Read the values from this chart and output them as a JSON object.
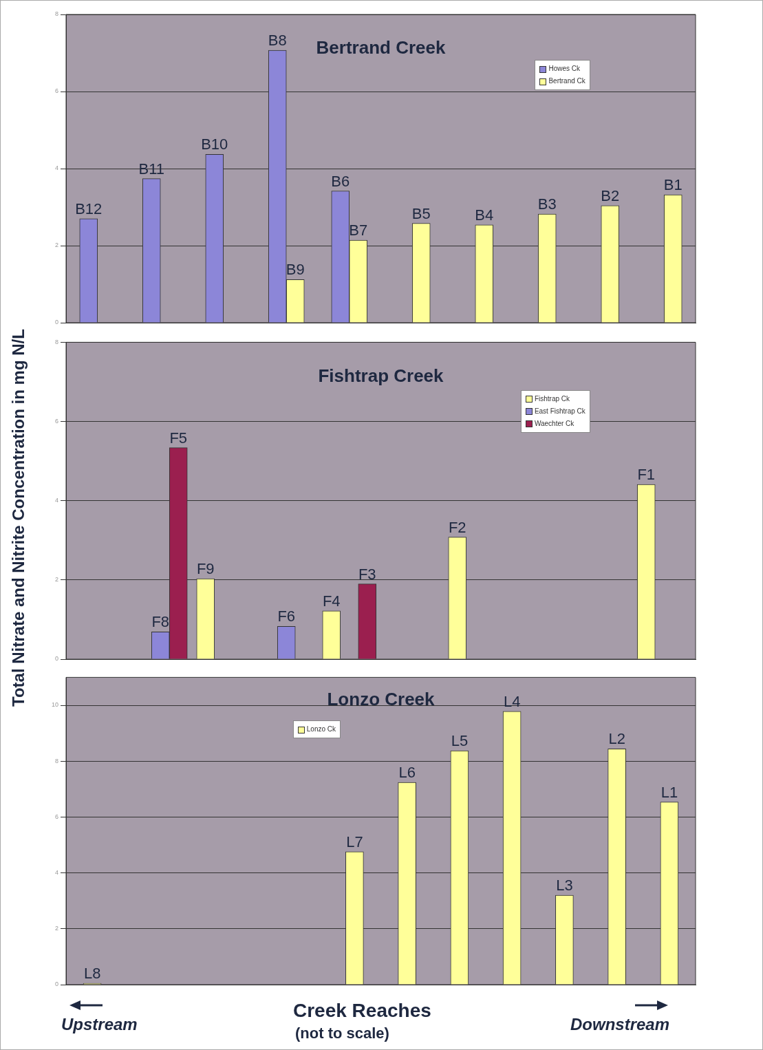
{
  "chart_data": [
    {
      "type": "bar",
      "title": "Bertrand Creek",
      "categories": [
        null,
        null,
        null,
        null,
        null,
        null,
        null,
        null,
        null,
        null
      ],
      "series": [
        {
          "name": "Howes Ck",
          "color": "#8c86d8",
          "values": [
            2.7,
            3.74,
            4.37,
            7.07,
            3.42,
            null,
            null,
            null,
            null,
            null
          ],
          "value_labels": [
            "B12",
            "B11",
            "B10",
            "B8",
            "B6",
            null,
            null,
            null,
            null,
            null
          ]
        },
        {
          "name": "Bertrand Ck",
          "color": "#ffff99",
          "values": [
            null,
            null,
            null,
            1.12,
            2.14,
            2.58,
            2.54,
            2.82,
            3.04,
            3.32
          ],
          "value_labels": [
            null,
            null,
            null,
            "B9",
            "B7",
            "B5",
            "B4",
            "B3",
            "B2",
            "B1"
          ]
        }
      ],
      "ylim": [
        0,
        8
      ],
      "yticks": [
        0,
        2,
        4,
        6,
        8
      ],
      "grid": "y",
      "legend": "top right",
      "tick_labels": "y"
    },
    {
      "type": "bar",
      "title": "Fishtrap Creek",
      "ylabel": "Total Nitrate and Nitrite Concentration in mg N/L",
      "categories": [
        null,
        null,
        null,
        null,
        null,
        null,
        null,
        null,
        null,
        null
      ],
      "series": [
        {
          "name": "Fishtrap Ck",
          "color": "#ffff99",
          "values": [
            null,
            null,
            2.03,
            null,
            1.22,
            null,
            3.08,
            null,
            null,
            4.41
          ],
          "value_labels": [
            null,
            null,
            "F9",
            null,
            "F4",
            null,
            "F2",
            null,
            null,
            "F1"
          ]
        },
        {
          "name": "East Fishtrap Ck",
          "color": "#8c86d8",
          "values": [
            null,
            0.69,
            null,
            0.83,
            null,
            null,
            null,
            null,
            null,
            null
          ],
          "value_labels": [
            null,
            "F8",
            null,
            "F6",
            null,
            null,
            null,
            null,
            null,
            null
          ]
        },
        {
          "name": "Waechter Ck",
          "color": "#9b1f4f",
          "values": [
            null,
            5.34,
            null,
            null,
            1.9,
            null,
            null,
            null,
            null,
            null
          ],
          "value_labels": [
            null,
            "F5",
            null,
            null,
            "F3",
            null,
            null,
            null,
            null,
            null
          ]
        }
      ],
      "ylim": [
        0,
        8
      ],
      "yticks": [
        0,
        2,
        4,
        6,
        8
      ],
      "grid": "y",
      "legend": "top right",
      "tick_labels": "y"
    },
    {
      "type": "bar",
      "title": "Lonzo Creek",
      "xlabel": "Creek Reaches",
      "categories": [
        null,
        null,
        null,
        null,
        null,
        null,
        null,
        null,
        null,
        null,
        null,
        null
      ],
      "series": [
        {
          "name": "Lonzo Ck",
          "color": "#ffff99",
          "values": [
            0.05,
            null,
            null,
            null,
            null,
            4.76,
            7.24,
            8.37,
            9.78,
            3.2,
            8.44,
            6.54
          ],
          "value_labels": [
            "L8",
            null,
            null,
            null,
            null,
            "L7",
            "L6",
            "L5",
            "L4",
            "L3",
            "L2",
            "L1"
          ]
        }
      ],
      "ylim": [
        0,
        11
      ],
      "yticks": [
        0,
        2,
        4,
        6,
        8,
        10
      ],
      "grid": "y",
      "legend": "top",
      "tick_labels": "y",
      "annotations": [
        "(not to scale)",
        "Upstream",
        "Downstream"
      ]
    }
  ]
}
